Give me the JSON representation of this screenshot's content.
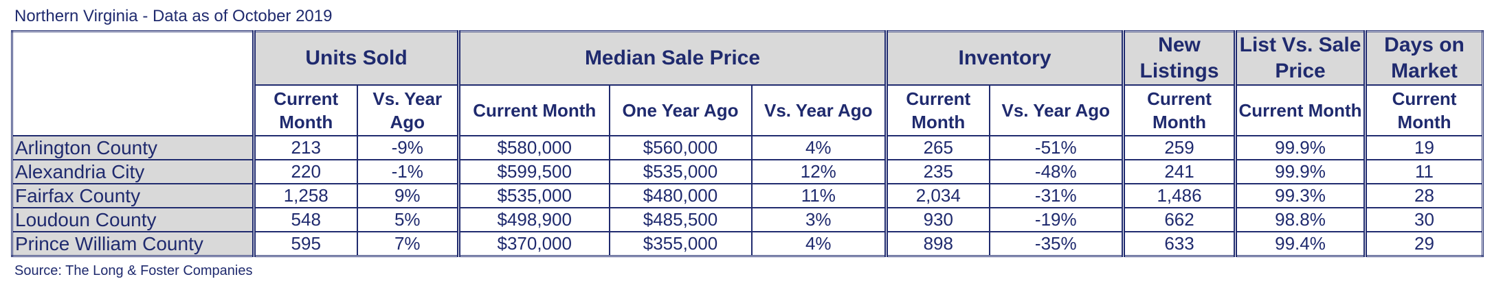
{
  "title": "Northern Virginia - Data as of October 2019",
  "source": "Source: The Long & Foster Companies",
  "groups": {
    "units_sold": "Units Sold",
    "median_sale_price": "Median Sale Price",
    "inventory": "Inventory",
    "new_listings": "New Listings",
    "list_vs_sale": "List Vs. Sale Price",
    "days_on_market": "Days on Market"
  },
  "subheaders": {
    "us_current": "Current Month",
    "us_vs": "Vs. Year Ago",
    "msp_current": "Current Month",
    "msp_one_year": "One Year Ago",
    "msp_vs": "Vs. Year Ago",
    "inv_current": "Current Month",
    "inv_vs": "Vs. Year Ago",
    "nl_current": "Current Month",
    "lvs_current": "Current Month",
    "dom_current": "Current Month"
  },
  "rows": [
    {
      "county": "Arlington County",
      "units_current": "213",
      "units_vs": "-9%",
      "msp_current": "$580,000",
      "msp_year_ago": "$560,000",
      "msp_vs": "4%",
      "inv_current": "265",
      "inv_vs": "-51%",
      "new_listings": "259",
      "list_vs_sale": "99.9%",
      "days": "19"
    },
    {
      "county": "Alexandria City",
      "units_current": "220",
      "units_vs": "-1%",
      "msp_current": "$599,500",
      "msp_year_ago": "$535,000",
      "msp_vs": "12%",
      "inv_current": "235",
      "inv_vs": "-48%",
      "new_listings": "241",
      "list_vs_sale": "99.9%",
      "days": "11"
    },
    {
      "county": "Fairfax County",
      "units_current": "1,258",
      "units_vs": "9%",
      "msp_current": "$535,000",
      "msp_year_ago": "$480,000",
      "msp_vs": "11%",
      "inv_current": "2,034",
      "inv_vs": "-31%",
      "new_listings": "1,486",
      "list_vs_sale": "99.3%",
      "days": "28"
    },
    {
      "county": "Loudoun County",
      "units_current": "548",
      "units_vs": "5%",
      "msp_current": "$498,900",
      "msp_year_ago": "$485,500",
      "msp_vs": "3%",
      "inv_current": "930",
      "inv_vs": "-19%",
      "new_listings": "662",
      "list_vs_sale": "98.8%",
      "days": "30"
    },
    {
      "county": "Prince William County",
      "units_current": "595",
      "units_vs": "7%",
      "msp_current": "$370,000",
      "msp_year_ago": "$355,000",
      "msp_vs": "4%",
      "inv_current": "898",
      "inv_vs": "-35%",
      "new_listings": "633",
      "list_vs_sale": "99.4%",
      "days": "29"
    }
  ]
}
